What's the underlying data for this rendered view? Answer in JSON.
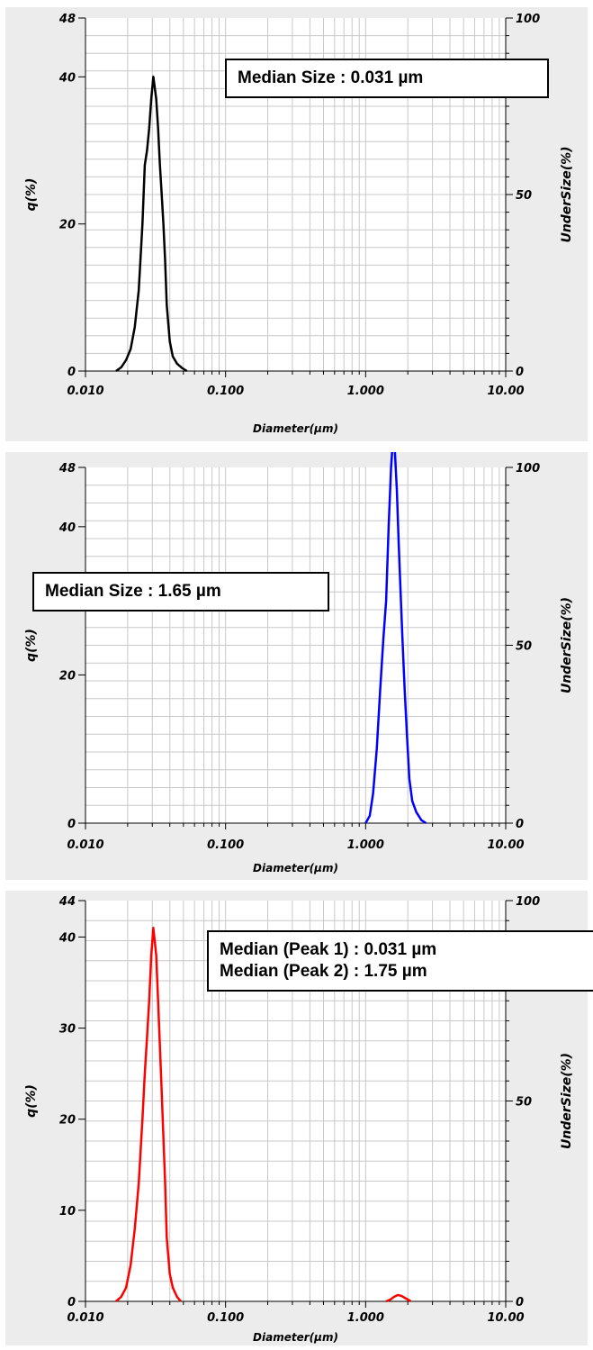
{
  "chart_data": [
    {
      "type": "line",
      "xlabel": "Diameter(µm)",
      "ylabel_left": "q(%)",
      "ylabel_right": "UnderSize(%)",
      "x_scale": "log",
      "xlim": [
        0.01,
        10
      ],
      "ylim": [
        0,
        48
      ],
      "ylim_right": [
        0,
        100
      ],
      "x_ticks": [
        "0.010",
        "0.100",
        "1.000",
        "10.00"
      ],
      "y_ticks": [
        {
          "v": 0,
          "t": "0"
        },
        {
          "v": 20,
          "t": "20"
        },
        {
          "v": 40,
          "t": "40"
        },
        {
          "v": 48,
          "t": "48"
        }
      ],
      "y_right_ticks": [
        {
          "v": 0,
          "t": "0"
        },
        {
          "v": 50,
          "t": "50"
        },
        {
          "v": 100,
          "t": "100"
        }
      ],
      "grid": true,
      "annotations": [
        "Median Size : 0.031 µm"
      ],
      "series": [
        {
          "color": "#000000",
          "x": [
            0.0165,
            0.018,
            0.0195,
            0.021,
            0.0225,
            0.024,
            0.0255,
            0.0265,
            0.0275,
            0.0285,
            0.0295,
            0.0305,
            0.031,
            0.032,
            0.033,
            0.034,
            0.035,
            0.036,
            0.037,
            0.038,
            0.04,
            0.042,
            0.045,
            0.049,
            0.053
          ],
          "y": [
            0,
            0.5,
            1.5,
            3,
            6,
            11,
            20,
            28,
            30,
            33,
            37,
            40,
            39,
            37,
            33,
            28,
            24,
            20,
            15,
            9,
            4,
            2,
            1,
            0.4,
            0
          ]
        }
      ]
    },
    {
      "type": "line",
      "xlabel": "Diameter(µm)",
      "ylabel_left": "q(%)",
      "ylabel_right": "UnderSize(%)",
      "x_scale": "log",
      "xlim": [
        0.01,
        10
      ],
      "ylim": [
        0,
        48
      ],
      "ylim_right": [
        0,
        100
      ],
      "x_ticks": [
        "0.010",
        "0.100",
        "1.000",
        "10.00"
      ],
      "y_ticks": [
        {
          "v": 0,
          "t": "0"
        },
        {
          "v": 20,
          "t": "20"
        },
        {
          "v": 40,
          "t": "40"
        },
        {
          "v": 48,
          "t": "48"
        }
      ],
      "y_right_ticks": [
        {
          "v": 0,
          "t": "0"
        },
        {
          "v": 50,
          "t": "50"
        },
        {
          "v": 100,
          "t": "100"
        }
      ],
      "grid": true,
      "annotations": [
        "Median Size : 1.65 µm"
      ],
      "series": [
        {
          "color": "#0000ff",
          "x": [
            1.0,
            1.07,
            1.13,
            1.2,
            1.27,
            1.34,
            1.4,
            1.46,
            1.52,
            1.57,
            1.62,
            1.67,
            1.72,
            1.77,
            1.83,
            1.9,
            1.97,
            2.05,
            2.15,
            2.3,
            2.5,
            2.7
          ],
          "y": [
            0,
            1,
            4,
            10,
            18,
            25,
            30,
            40,
            48,
            52,
            50,
            45,
            38,
            32,
            25,
            18,
            12,
            6,
            3,
            1.5,
            0.4,
            0
          ]
        }
      ]
    },
    {
      "type": "line",
      "xlabel": "Diameter(µm)",
      "ylabel_left": "q(%)",
      "ylabel_right": "UnderSize(%)",
      "x_scale": "log",
      "xlim": [
        0.01,
        10
      ],
      "ylim": [
        0,
        44
      ],
      "ylim_right": [
        0,
        100
      ],
      "x_ticks": [
        "0.010",
        "0.100",
        "1.000",
        "10.00"
      ],
      "y_ticks": [
        {
          "v": 0,
          "t": "0"
        },
        {
          "v": 10,
          "t": "10"
        },
        {
          "v": 20,
          "t": "20"
        },
        {
          "v": 30,
          "t": "30"
        },
        {
          "v": 40,
          "t": "40"
        },
        {
          "v": 44,
          "t": "44"
        }
      ],
      "y_right_ticks": [
        {
          "v": 0,
          "t": "0"
        },
        {
          "v": 50,
          "t": "50"
        },
        {
          "v": 100,
          "t": "100"
        }
      ],
      "grid": true,
      "annotations": [
        "Median (Peak 1) : 0.031 µm",
        "Median (Peak 2) : 1.75 µm"
      ],
      "series": [
        {
          "color": "#ff0000",
          "x": [
            0.0165,
            0.018,
            0.0195,
            0.021,
            0.0225,
            0.024,
            0.0255,
            0.0265,
            0.0275,
            0.0285,
            0.0295,
            0.0305,
            0.031,
            0.032,
            0.033,
            0.034,
            0.035,
            0.036,
            0.037,
            0.038,
            0.04,
            0.042,
            0.045,
            0.048
          ],
          "y": [
            0,
            0.5,
            1.5,
            4,
            8,
            13,
            20,
            25,
            29,
            33,
            38,
            41,
            40,
            38,
            33,
            28,
            23,
            18,
            13,
            7,
            3,
            1.5,
            0.5,
            0
          ]
        },
        {
          "color": "#ff0000",
          "x": [
            1.4,
            1.5,
            1.6,
            1.7,
            1.8,
            1.9,
            2.0,
            2.1
          ],
          "y": [
            0,
            0.2,
            0.5,
            0.7,
            0.6,
            0.4,
            0.2,
            0
          ]
        }
      ]
    }
  ]
}
